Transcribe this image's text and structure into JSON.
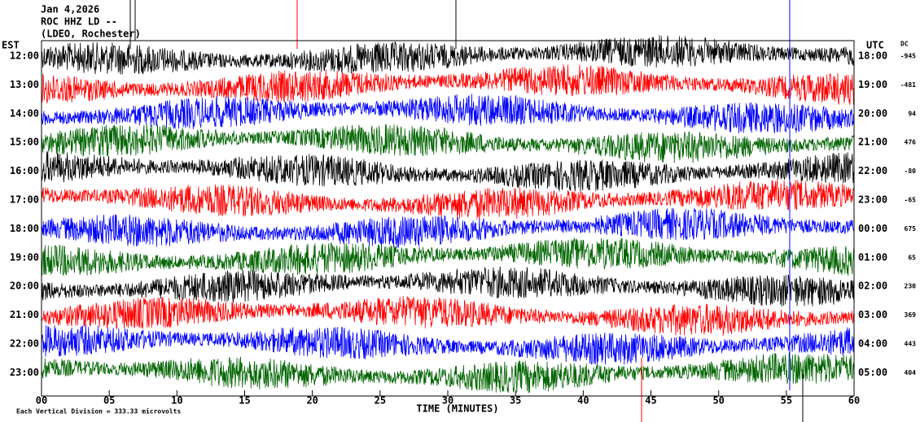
{
  "chart_data": {
    "type": "helicorder",
    "title_lines": [
      "Jan 4,2026",
      "ROC HHZ LD --",
      "(LDEO, Rochester)"
    ],
    "left_header": "EST",
    "right_header": "UTC",
    "dc_header": "DC",
    "x_label": "TIME (MINUTES)",
    "footer": "Each Vertical Division =  333.33 microvolts",
    "xlim": [
      0,
      60
    ],
    "xticks": [
      {
        "value": 0,
        "label": "00"
      },
      {
        "value": 5,
        "label": "05"
      },
      10,
      15,
      20,
      25,
      30,
      35,
      40,
      45,
      50,
      55,
      60
    ],
    "colors": [
      "#000000",
      "#ff0000",
      "#0000ff",
      "#006400"
    ],
    "rows": [
      {
        "est": "12:00",
        "utc": "18:00",
        "dc": -945
      },
      {
        "est": "13:00",
        "utc": "19:00",
        "dc": -481
      },
      {
        "est": "14:00",
        "utc": "20:00",
        "dc": 94
      },
      {
        "est": "15:00",
        "utc": "21:00",
        "dc": 476
      },
      {
        "est": "16:00",
        "utc": "22:00",
        "dc": -80
      },
      {
        "est": "17:00",
        "utc": "23:00",
        "dc": -65
      },
      {
        "est": "18:00",
        "utc": "00:00",
        "dc": 675
      },
      {
        "est": "19:00",
        "utc": "01:00",
        "dc": 65
      },
      {
        "est": "20:00",
        "utc": "02:00",
        "dc": 230
      },
      {
        "est": "21:00",
        "utc": "03:00",
        "dc": 369
      },
      {
        "est": "22:00",
        "utc": "04:00",
        "dc": 443
      },
      {
        "est": "23:00",
        "utc": "05:00",
        "dc": 404
      }
    ]
  }
}
